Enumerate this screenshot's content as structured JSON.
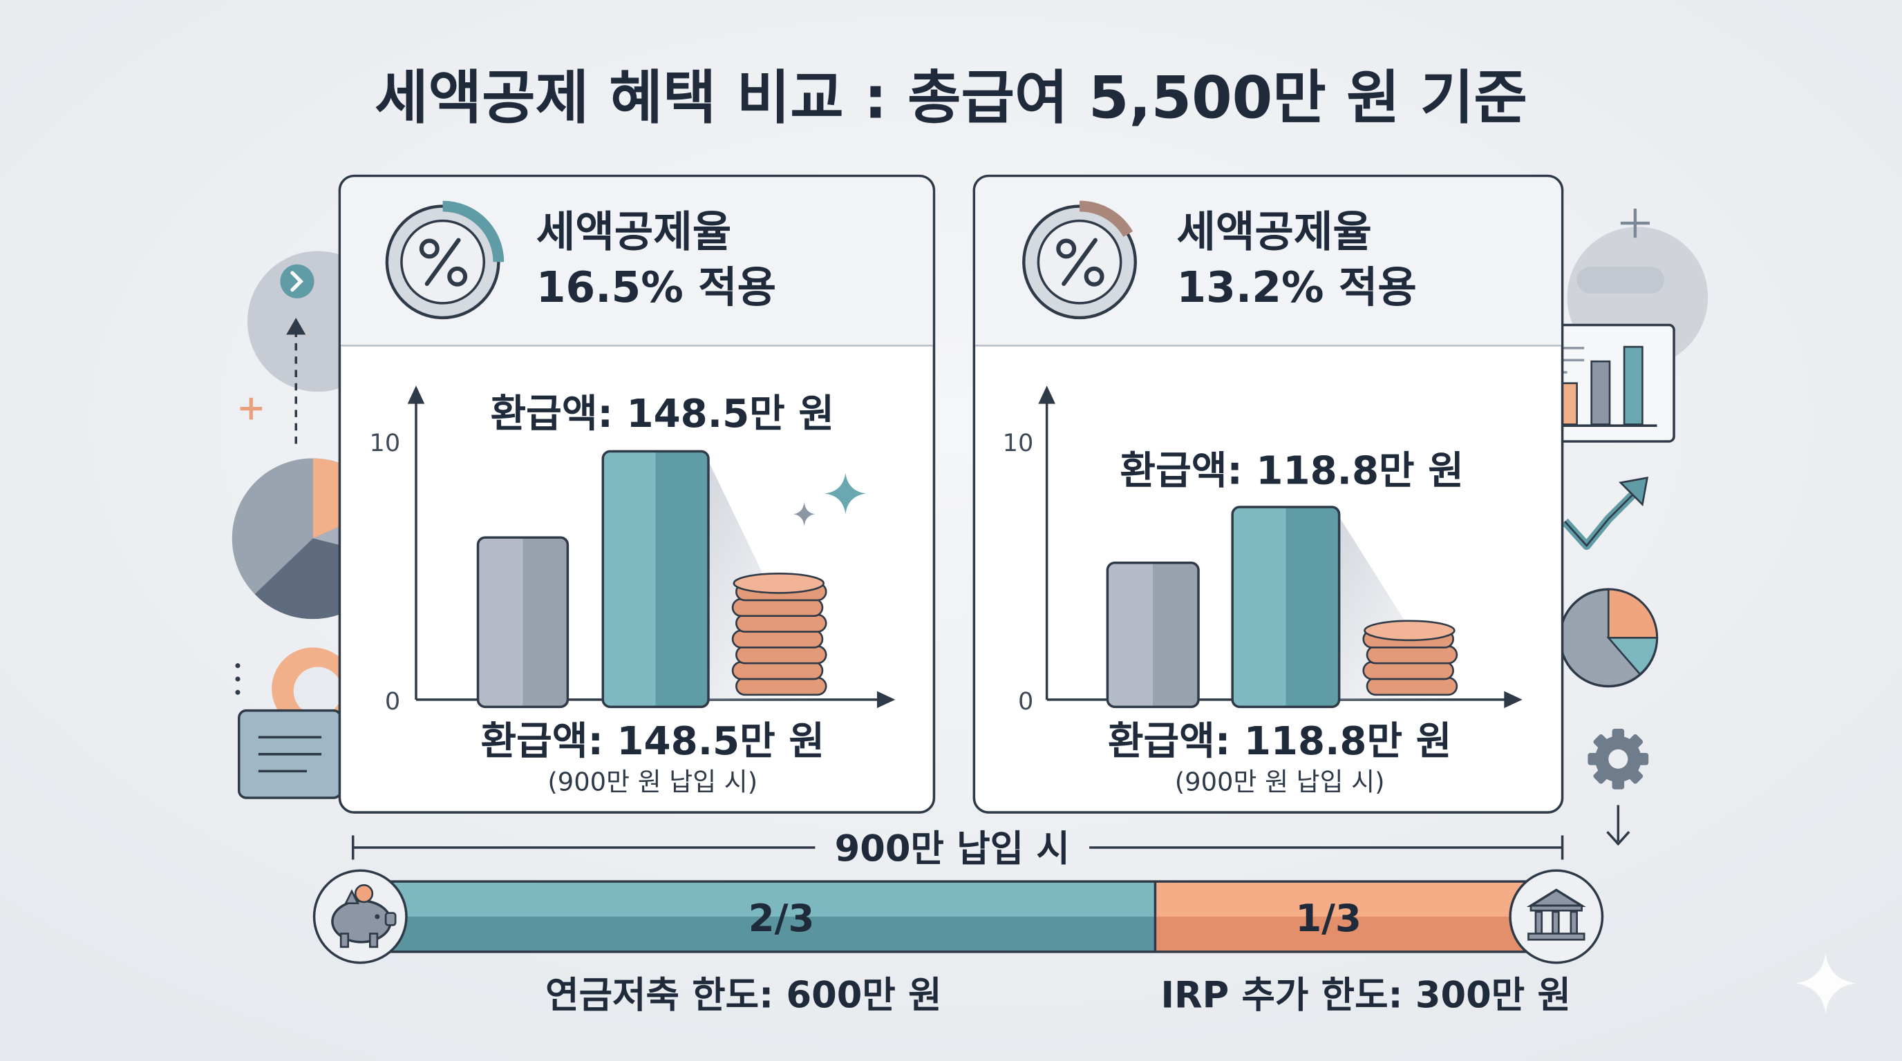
{
  "title": "세액공제 혜택 비교 : 총급여 5,500만 원 기준",
  "panels": [
    {
      "rate_line1": "세액공제율",
      "rate_line2": "16.5% 적용",
      "refund_top": "환급액: 148.5만 원",
      "refund_bottom": "환급액: 148.5만 원",
      "note": "(900만 원 납입 시)",
      "axis_ticks": [
        "10",
        "0"
      ]
    },
    {
      "rate_line1": "세액공제율",
      "rate_line2": "13.2% 적용",
      "refund_top": "환급액: 118.8만 원",
      "refund_bottom": "환급액: 118.8만 원",
      "note": "(900만 원 납입 시)",
      "axis_ticks": [
        "10",
        "0"
      ]
    }
  ],
  "chart_data": [
    {
      "type": "bar",
      "y_ticks": [
        "10",
        "0"
      ],
      "values": [
        6.4,
        9.8
      ],
      "coin_stack_count": 7
    },
    {
      "type": "bar",
      "y_ticks": [
        "10",
        "0"
      ],
      "values": [
        5.4,
        7.6
      ],
      "coin_stack_count": 4
    }
  ],
  "split": {
    "label": "900만 납입 시",
    "left_fraction": "2/3",
    "right_fraction": "1/3",
    "left_share": 0.667,
    "left_caption": "연금저축 한도: 600만 원",
    "right_caption": "IRP 추가 한도: 300만 원"
  },
  "colors": {
    "teal": "#6aa8b1",
    "teal_dark": "#4f8e98",
    "gray_bar": "#a3abb7",
    "orange": "#f0a07c",
    "coin": "#e7a080",
    "ink": "#1f2a3a"
  },
  "icons": [
    "percent-icon",
    "piggy-bank-icon",
    "bank-icon",
    "gear-icon",
    "pie-chart-icon",
    "bar-chart-icon",
    "trend-arrow-icon",
    "sparkle-icon",
    "coins-icon"
  ]
}
